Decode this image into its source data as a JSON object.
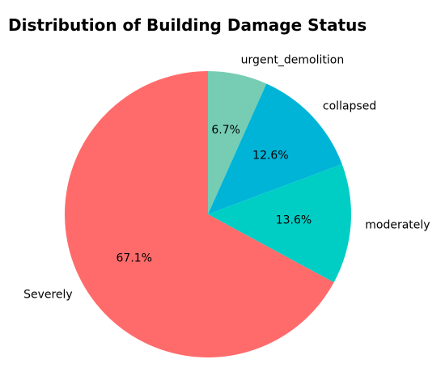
{
  "chart_data": {
    "type": "pie",
    "title": "Distribution of Building Damage Status",
    "categories": [
      "urgent_demolition",
      "collapsed",
      "moderately",
      "Severely"
    ],
    "values": [
      6.7,
      12.6,
      13.6,
      67.1
    ],
    "value_labels": [
      "6.7%",
      "12.6%",
      "13.6%",
      "67.1%"
    ],
    "colors": [
      "#76cdb4",
      "#00b4d8",
      "#00cec5",
      "#ff6b6b"
    ]
  }
}
